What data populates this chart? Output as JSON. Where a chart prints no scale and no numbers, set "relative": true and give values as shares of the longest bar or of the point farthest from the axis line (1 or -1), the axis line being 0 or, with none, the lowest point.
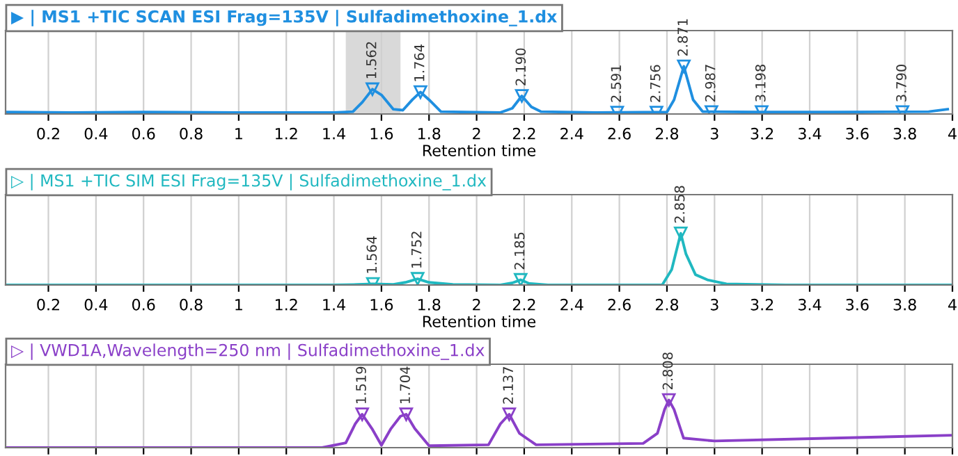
{
  "chart_data": [
    {
      "type": "line",
      "relative": true,
      "title": "▶ | MS1 +TIC SCAN ESI Frag=135V | Sulfadimethoxine_1.dx",
      "xlabel": "Retention time",
      "grid": true,
      "line_style": "solid",
      "marker": "none",
      "xlim": [
        0.02,
        4.0
      ],
      "xticks": [
        0.2,
        0.4,
        0.6,
        0.8,
        1,
        1.2,
        1.4,
        1.6,
        1.8,
        2,
        2.2,
        2.4,
        2.6,
        2.8,
        3,
        3.2,
        3.4,
        3.6,
        3.8,
        4
      ],
      "bands": [
        {
          "axis": "x",
          "from": 1.45,
          "to": 1.68,
          "color": "#d9d9d9"
        }
      ],
      "series": [
        {
          "color": "#1f8fe0",
          "x": [
            0.02,
            0.3,
            0.6,
            1.0,
            1.4,
            1.48,
            1.52,
            1.562,
            1.6,
            1.65,
            1.69,
            1.73,
            1.764,
            1.8,
            1.85,
            2.1,
            2.15,
            2.19,
            2.23,
            2.27,
            2.5,
            2.8,
            2.83,
            2.871,
            2.91,
            2.95,
            3.2,
            3.5,
            3.9,
            3.98
          ],
          "values": [
            0.04,
            0.03,
            0.04,
            0.03,
            0.03,
            0.05,
            0.25,
            0.52,
            0.4,
            0.1,
            0.08,
            0.3,
            0.46,
            0.3,
            0.05,
            0.03,
            0.12,
            0.38,
            0.15,
            0.05,
            0.03,
            0.04,
            0.3,
            1.0,
            0.3,
            0.05,
            0.04,
            0.04,
            0.05,
            0.1
          ]
        }
      ],
      "annotations": [
        {
          "text": "1.562",
          "x": 1.562,
          "y": 0.52
        },
        {
          "text": "1.764",
          "x": 1.764,
          "y": 0.46
        },
        {
          "text": "2.190",
          "x": 2.19,
          "y": 0.38
        },
        {
          "text": "2.591",
          "x": 2.591,
          "y": 0.03
        },
        {
          "text": "2.756",
          "x": 2.756,
          "y": 0.03
        },
        {
          "text": "2.871",
          "x": 2.871,
          "y": 1.0
        },
        {
          "text": "2.987",
          "x": 2.987,
          "y": 0.04
        },
        {
          "text": "3.198",
          "x": 3.198,
          "y": 0.04
        },
        {
          "text": "3.790",
          "x": 3.79,
          "y": 0.04
        }
      ]
    },
    {
      "type": "line",
      "relative": true,
      "title": "▷ | MS1 +TIC SIM ESI Frag=135V | Sulfadimethoxine_1.dx",
      "xlabel": "Retention time",
      "grid": true,
      "line_style": "solid",
      "marker": "none",
      "xlim": [
        0.02,
        4.0
      ],
      "xticks": [
        0.2,
        0.4,
        0.6,
        0.8,
        1,
        1.2,
        1.4,
        1.6,
        1.8,
        2,
        2.2,
        2.4,
        2.6,
        2.8,
        3,
        3.2,
        3.4,
        3.6,
        3.8,
        4
      ],
      "series": [
        {
          "color": "#20b8c0",
          "x": [
            0.02,
            1.4,
            1.5,
            1.564,
            1.65,
            1.7,
            1.752,
            1.8,
            1.9,
            2.1,
            2.15,
            2.185,
            2.22,
            2.3,
            2.78,
            2.82,
            2.858,
            2.88,
            2.92,
            2.97,
            3.05,
            3.3,
            4.0
          ],
          "values": [
            0.0,
            0.0,
            0.01,
            0.02,
            0.01,
            0.05,
            0.12,
            0.05,
            0.01,
            0.0,
            0.04,
            0.1,
            0.03,
            0.0,
            0.0,
            0.3,
            1.0,
            0.6,
            0.2,
            0.1,
            0.02,
            0.0,
            0.0
          ]
        }
      ],
      "annotations": [
        {
          "text": "1.564",
          "x": 1.564,
          "y": 0.02
        },
        {
          "text": "1.752",
          "x": 1.752,
          "y": 0.12
        },
        {
          "text": "2.185",
          "x": 2.185,
          "y": 0.1
        },
        {
          "text": "2.858",
          "x": 2.858,
          "y": 1.0
        }
      ]
    },
    {
      "type": "line",
      "relative": true,
      "title": "▷ | VWD1A,Wavelength=250 nm | Sulfadimethoxine_1.dx",
      "grid": true,
      "line_style": "solid",
      "marker": "none",
      "tick_labels": false,
      "xlim": [
        0.02,
        4.0
      ],
      "xticks": [
        0.2,
        0.4,
        0.6,
        0.8,
        1,
        1.2,
        1.4,
        1.6,
        1.8,
        2,
        2.2,
        2.4,
        2.6,
        2.8,
        3,
        3.2,
        3.4,
        3.6,
        3.8,
        4
      ],
      "series": [
        {
          "color": "#8a3fc8",
          "x": [
            0.02,
            0.25,
            0.28,
            0.5,
            1.0,
            1.35,
            1.45,
            1.49,
            1.519,
            1.56,
            1.6,
            1.64,
            1.68,
            1.704,
            1.74,
            1.8,
            2.05,
            2.1,
            2.137,
            2.18,
            2.25,
            2.7,
            2.76,
            2.79,
            2.808,
            2.83,
            2.87,
            3.0,
            3.5,
            4.0
          ],
          "values": [
            0.0,
            0.0,
            0.0,
            0.0,
            0.0,
            0.0,
            0.1,
            0.5,
            0.7,
            0.4,
            0.05,
            0.4,
            0.66,
            0.7,
            0.4,
            0.04,
            0.06,
            0.5,
            0.7,
            0.3,
            0.06,
            0.09,
            0.3,
            0.8,
            1.0,
            0.8,
            0.2,
            0.14,
            0.2,
            0.26
          ]
        }
      ],
      "annotations": [
        {
          "text": "1.519",
          "x": 1.519,
          "y": 0.7
        },
        {
          "text": "1.704",
          "x": 1.704,
          "y": 0.7
        },
        {
          "text": "2.137",
          "x": 2.137,
          "y": 0.7
        },
        {
          "text": "2.808",
          "x": 2.808,
          "y": 1.0
        }
      ]
    }
  ]
}
